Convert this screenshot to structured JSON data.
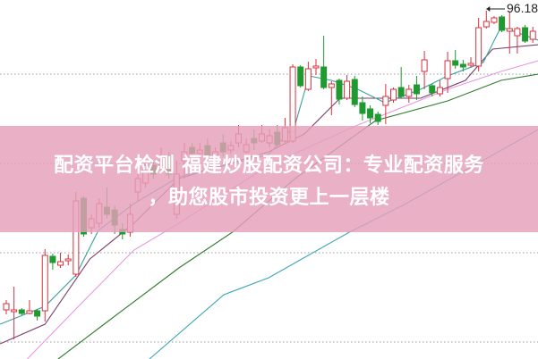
{
  "banner": {
    "title_lines": [
      "配资平台检测 福建炒股配资公司：专业配资服务",
      "，助您股市投资更上一层楼"
    ]
  },
  "chart_data": {
    "type": "candlestick",
    "title": "",
    "xlabel": "",
    "ylabel": "",
    "grid": true,
    "gridlines": [
      89.08,
      79.08,
      69.08,
      59.08
    ],
    "ylim": [
      57.18,
      97.38
    ],
    "xlim": [
      0.2,
      69.7
    ],
    "max_label": {
      "text": "96.18",
      "value": 96.18,
      "candle": 63
    },
    "colors": {
      "up": "#d9303d",
      "down": "#1f9a30",
      "ma_fast": "#3aa0a0",
      "ma_mid": "#7a3d6a",
      "ma_pink": "#e49ae0",
      "ma_green": "#2f7a2f",
      "ma_cyan": "#3aa6b8",
      "grid": "#9a9a9a"
    },
    "candles": [
      [
        62.68,
        63.78,
        62.18,
        63.38
      ],
      [
        62.48,
        65.28,
        59.38,
        62.68
      ],
      [
        62.68,
        62.88,
        62.08,
        62.28
      ],
      [
        62.28,
        63.78,
        62.18,
        62.58
      ],
      [
        62.58,
        62.78,
        61.48,
        61.98
      ],
      [
        62.58,
        69.48,
        61.38,
        68.78
      ],
      [
        68.68,
        68.98,
        67.18,
        67.98
      ],
      [
        67.68,
        69.08,
        67.38,
        68.08
      ],
      [
        68.18,
        68.88,
        67.68,
        68.38
      ],
      [
        66.68,
        75.88,
        66.38,
        74.88
      ],
      [
        75.18,
        75.38,
        70.88,
        71.18
      ],
      [
        71.88,
        73.38,
        71.18,
        72.88
      ],
      [
        72.38,
        75.18,
        71.88,
        74.58
      ],
      [
        74.18,
        76.38,
        72.88,
        73.38
      ],
      [
        73.88,
        74.38,
        71.18,
        72.18
      ],
      [
        71.68,
        72.38,
        70.58,
        71.18
      ],
      [
        71.38,
        74.58,
        70.88,
        73.38
      ],
      [
        75.88,
        77.88,
        74.88,
        77.38
      ],
      [
        76.88,
        79.38,
        76.38,
        78.88
      ],
      [
        78.88,
        79.38,
        77.38,
        77.88
      ],
      [
        78.88,
        80.88,
        78.38,
        79.38
      ],
      [
        79.88,
        80.38,
        77.38,
        77.88
      ],
      [
        73.38,
        79.38,
        72.88,
        77.88
      ],
      [
        79.38,
        81.38,
        77.38,
        80.38
      ],
      [
        80.88,
        81.38,
        79.88,
        80.18
      ],
      [
        80.18,
        81.38,
        79.58,
        80.58
      ],
      [
        81.08,
        81.88,
        79.38,
        79.88
      ],
      [
        79.38,
        80.88,
        79.18,
        80.38
      ],
      [
        81.38,
        82.38,
        79.88,
        80.38
      ],
      [
        80.58,
        81.58,
        80.18,
        81.08
      ],
      [
        81.38,
        83.38,
        80.88,
        82.38
      ],
      [
        80.38,
        81.88,
        80.18,
        81.18
      ],
      [
        81.88,
        82.88,
        80.58,
        81.38
      ],
      [
        81.58,
        83.38,
        81.38,
        82.38
      ],
      [
        81.38,
        82.88,
        80.88,
        82.18
      ],
      [
        82.58,
        83.38,
        80.88,
        81.18
      ],
      [
        81.58,
        84.18,
        81.38,
        83.08
      ],
      [
        81.58,
        90.18,
        81.38,
        89.88
      ],
      [
        89.88,
        90.08,
        87.58,
        87.78
      ],
      [
        87.38,
        90.48,
        87.18,
        89.68
      ],
      [
        89.78,
        90.78,
        88.98,
        89.98
      ],
      [
        89.88,
        93.38,
        87.38,
        87.58
      ],
      [
        87.58,
        88.28,
        84.48,
        87.98
      ],
      [
        88.38,
        88.58,
        85.68,
        86.28
      ],
      [
        86.38,
        88.98,
        86.18,
        88.28
      ],
      [
        88.48,
        88.88,
        85.38,
        85.68
      ],
      [
        85.88,
        86.58,
        83.88,
        84.68
      ],
      [
        85.18,
        85.58,
        83.58,
        84.18
      ],
      [
        84.58,
        84.88,
        83.38,
        83.78
      ],
      [
        85.58,
        87.98,
        83.48,
        86.58
      ],
      [
        86.18,
        87.58,
        85.88,
        87.38
      ],
      [
        87.58,
        89.88,
        86.38,
        86.58
      ],
      [
        86.58,
        87.88,
        85.88,
        87.38
      ],
      [
        87.88,
        88.88,
        86.18,
        86.88
      ],
      [
        89.38,
        91.68,
        87.38,
        90.68
      ],
      [
        87.78,
        87.98,
        86.58,
        86.98
      ],
      [
        86.88,
        88.38,
        86.58,
        87.58
      ],
      [
        88.58,
        91.58,
        86.98,
        90.58
      ],
      [
        90.58,
        91.78,
        89.68,
        90.08
      ],
      [
        90.18,
        90.68,
        89.38,
        89.88
      ],
      [
        90.08,
        90.98,
        89.78,
        90.28
      ],
      [
        89.98,
        95.38,
        89.38,
        94.28
      ],
      [
        94.38,
        96.18,
        94.18,
        94.98
      ],
      [
        94.88,
        95.58,
        94.68,
        95.38
      ],
      [
        95.48,
        95.68,
        93.78,
        93.98
      ],
      [
        93.88,
        96.08,
        91.38,
        94.18
      ],
      [
        93.38,
        94.38,
        91.38,
        94.18
      ],
      [
        94.28,
        94.58,
        92.58,
        92.78
      ],
      [
        92.98,
        94.38,
        92.58,
        93.88
      ]
    ],
    "candle_fields": [
      "open",
      "high",
      "low",
      "close"
    ],
    "lines": [
      {
        "color_key": "ma_cyan",
        "points": [
          [
            19.5,
            57.18
          ],
          [
            29.1,
            64.38
          ],
          [
            34.9,
            66.28
          ],
          [
            45.3,
            71.38
          ],
          [
            52.2,
            74.38
          ],
          [
            69.7,
            82.88
          ]
        ]
      },
      {
        "color_key": "ma_green",
        "points": [
          [
            7.7,
            57.18
          ],
          [
            14.1,
            61.38
          ],
          [
            23.3,
            67.38
          ],
          [
            30.2,
            71.38
          ],
          [
            38.3,
            77.38
          ],
          [
            48.7,
            83.88
          ],
          [
            58,
            86.08
          ],
          [
            64.9,
            88.38
          ],
          [
            69.7,
            89.08
          ]
        ]
      },
      {
        "color_key": "ma_pink",
        "points": [
          [
            3.7,
            57.18
          ],
          [
            11.8,
            64.38
          ],
          [
            17.5,
            69.38
          ],
          [
            23.3,
            72.38
          ],
          [
            34.9,
            78.88
          ],
          [
            46.4,
            83.38
          ],
          [
            58,
            87.38
          ],
          [
            64.9,
            89.38
          ],
          [
            69.7,
            90.58
          ]
        ]
      },
      {
        "color_key": "ma_mid",
        "points": [
          [
            0.2,
            58.88
          ],
          [
            6,
            61.08
          ],
          [
            11.8,
            68.38
          ],
          [
            17.5,
            72.38
          ],
          [
            23.3,
            77.38
          ],
          [
            34.9,
            80.38
          ],
          [
            39.5,
            82.38
          ],
          [
            44.1,
            86.38
          ],
          [
            48.7,
            86.38
          ],
          [
            54.5,
            86.38
          ],
          [
            60.3,
            88.38
          ],
          [
            63.8,
            91.88
          ],
          [
            69.7,
            92.38
          ]
        ]
      },
      {
        "color_key": "ma_fast",
        "points": [
          [
            0.2,
            61.08
          ],
          [
            6,
            63.08
          ],
          [
            10,
            66.58
          ],
          [
            12.9,
            71.58
          ],
          [
            17.5,
            74.58
          ],
          [
            23.3,
            77.58
          ],
          [
            34.9,
            80.08
          ],
          [
            38.3,
            83.38
          ],
          [
            40.1,
            88.88
          ],
          [
            43,
            88.38
          ],
          [
            46.4,
            87.38
          ],
          [
            49.9,
            85.88
          ],
          [
            54.5,
            87.38
          ],
          [
            58,
            88.88
          ],
          [
            62.6,
            90.38
          ],
          [
            64.9,
            94.38
          ],
          [
            69.7,
            92.88
          ]
        ]
      }
    ]
  }
}
